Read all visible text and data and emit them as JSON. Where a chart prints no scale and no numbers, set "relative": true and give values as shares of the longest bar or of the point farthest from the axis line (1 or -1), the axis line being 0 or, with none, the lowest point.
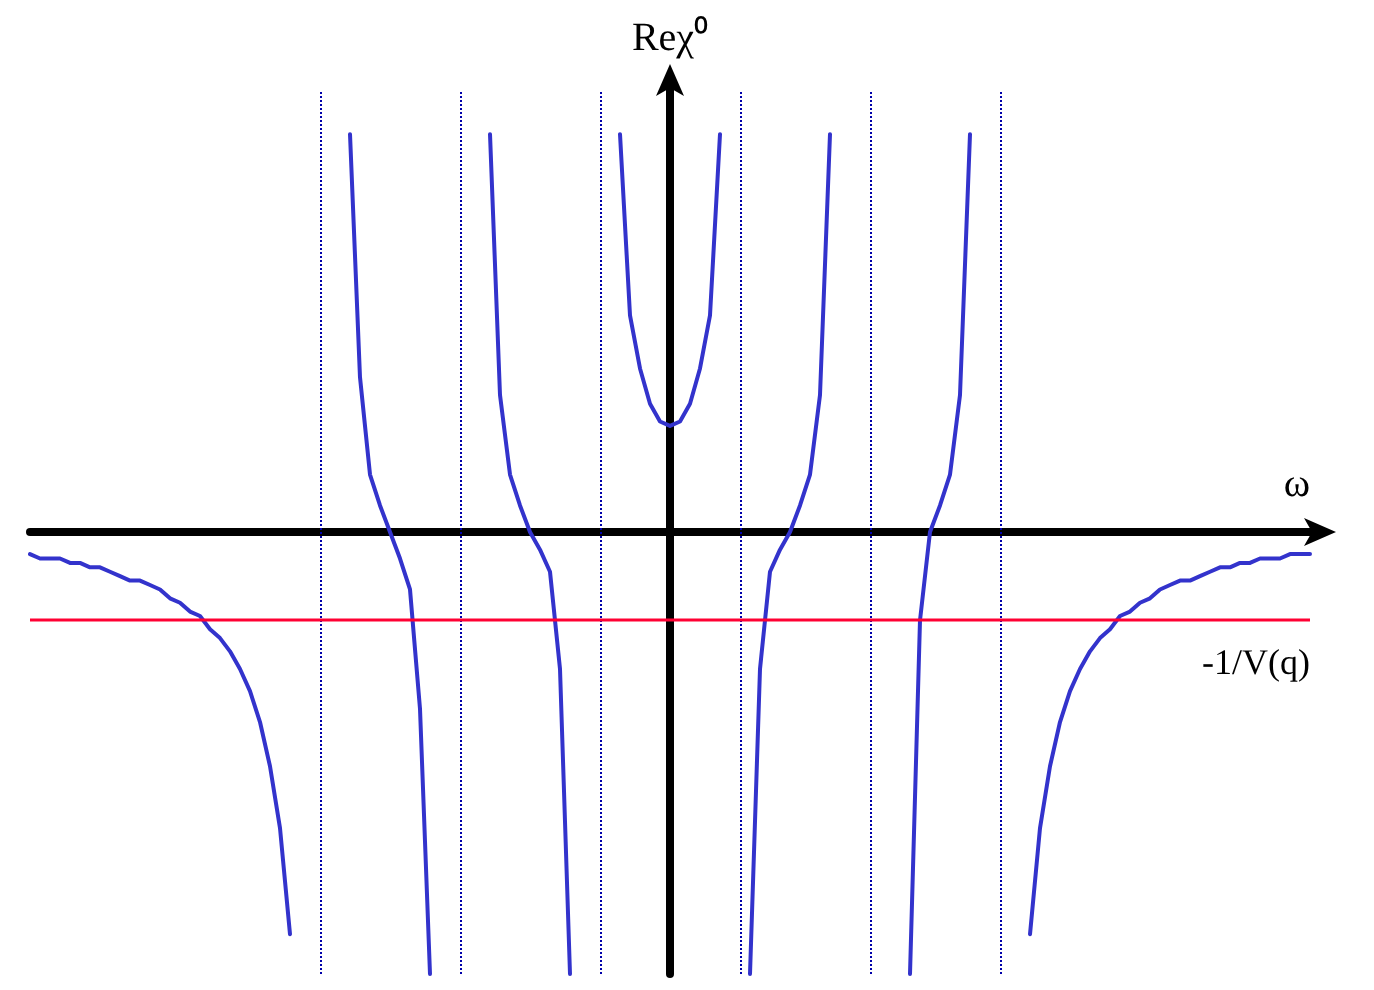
{
  "chart_data": {
    "type": "line",
    "xlabel": "ω",
    "ylabel": "Reχ⁰",
    "relative": true,
    "grid": false,
    "marker": "none",
    "categories": [
      null,
      null,
      null,
      null,
      null,
      null,
      null,
      null,
      null,
      null,
      null,
      null,
      null,
      null,
      null,
      null,
      null,
      null,
      null,
      null,
      null,
      null,
      null,
      null,
      null,
      null,
      null,
      null,
      null,
      null,
      null,
      null,
      null,
      null,
      null,
      null,
      null,
      null,
      null,
      null,
      null,
      null,
      null,
      null,
      null,
      null,
      null,
      null,
      null,
      null,
      null,
      null,
      null,
      null,
      null,
      null,
      null,
      null,
      null,
      null,
      null,
      null,
      null,
      null,
      null,
      null,
      null,
      null,
      null,
      null,
      null,
      null,
      null,
      null,
      null,
      null,
      null,
      null,
      null,
      null,
      null,
      null,
      null,
      null,
      null,
      null,
      null,
      null,
      null,
      null,
      null,
      null,
      null,
      null,
      null,
      null,
      null,
      null,
      null,
      null,
      null,
      null,
      null,
      null,
      null,
      null,
      null,
      null,
      null,
      null,
      null,
      null,
      null,
      null,
      null,
      null,
      null,
      null,
      null,
      null,
      null,
      null,
      null,
      null,
      null,
      null,
      null,
      null,
      null
    ],
    "series": [
      {
        "color": "#3333cc",
        "values": [
          -0.05,
          -0.06,
          -0.06,
          -0.06,
          -0.07,
          -0.07,
          -0.08,
          -0.08,
          -0.09,
          -0.1,
          -0.11,
          -0.11,
          -0.12,
          -0.13,
          -0.15,
          -0.16,
          -0.18,
          -0.19,
          -0.22,
          -0.24,
          -0.27,
          -0.31,
          -0.36,
          -0.43,
          -0.53,
          -0.67,
          -0.91,
          null,
          null,
          null,
          null,
          null,
          null,
          null,
          null,
          null,
          null,
          null,
          null,
          null,
          null,
          null,
          null,
          null,
          null,
          null,
          null,
          null,
          null,
          null,
          null,
          null,
          null,
          null,
          null,
          null,
          null,
          null,
          null,
          null,
          null,
          null,
          null,
          null,
          null,
          null,
          null,
          null,
          null,
          null,
          null,
          null,
          null,
          null,
          null,
          null,
          null,
          null,
          null,
          null,
          null,
          null,
          null,
          null,
          null,
          null,
          null,
          null,
          null,
          null,
          null,
          null,
          null,
          null,
          null,
          null,
          null,
          null,
          null,
          null,
          null,
          null,
          null,
          null,
          null,
          null,
          null,
          null,
          null,
          null,
          null,
          null,
          null,
          null,
          null,
          null,
          null,
          null,
          null,
          null,
          null,
          null,
          null,
          null,
          null,
          null,
          null,
          null,
          null
        ]
      },
      {
        "color": "#3333cc",
        "values": [
          null,
          null,
          null,
          null,
          null,
          null,
          null,
          null,
          null,
          null,
          null,
          null,
          null,
          null,
          null,
          null,
          null,
          null,
          null,
          null,
          null,
          null,
          null,
          null,
          null,
          null,
          null,
          null,
          null,
          null,
          null,
          null,
          0.9,
          0.35,
          0.13,
          0.06,
          0,
          -0.06,
          -0.13,
          -0.4,
          -1,
          null,
          null,
          null,
          null,
          null,
          null,
          null,
          null,
          null,
          null,
          null,
          null,
          null,
          null,
          null,
          null,
          null,
          null,
          null,
          null,
          null,
          null,
          null,
          null,
          null,
          null,
          null,
          null,
          null,
          null,
          null,
          null,
          null,
          null,
          null,
          null,
          null,
          null,
          null,
          null,
          null,
          null,
          null,
          null,
          null,
          null,
          null,
          null,
          null,
          null,
          null,
          null,
          null,
          null,
          null,
          null,
          null,
          null,
          null,
          null,
          null,
          null,
          null,
          null,
          null,
          null,
          null,
          null,
          null,
          null,
          null,
          null,
          null,
          null,
          null,
          null,
          null,
          null,
          null,
          null,
          null,
          null,
          null,
          null,
          null,
          null,
          null,
          null
        ]
      },
      {
        "color": "#3333cc",
        "values": [
          null,
          null,
          null,
          null,
          null,
          null,
          null,
          null,
          null,
          null,
          null,
          null,
          null,
          null,
          null,
          null,
          null,
          null,
          null,
          null,
          null,
          null,
          null,
          null,
          null,
          null,
          null,
          null,
          null,
          null,
          null,
          null,
          null,
          null,
          null,
          null,
          null,
          null,
          null,
          null,
          null,
          null,
          null,
          null,
          null,
          null,
          0.9,
          0.31,
          0.13,
          0.06,
          0,
          -0.04,
          -0.09,
          -0.31,
          -1,
          null,
          null,
          null,
          null,
          null,
          null,
          null,
          null,
          null,
          null,
          null,
          null,
          null,
          null,
          null,
          null,
          null,
          null,
          null,
          null,
          null,
          null,
          null,
          null,
          null,
          null,
          null,
          null,
          null,
          null,
          null,
          null,
          null,
          null,
          null,
          null,
          null,
          null,
          null,
          null,
          null,
          null,
          null,
          null,
          null,
          null,
          null,
          null,
          null,
          null,
          null,
          null,
          null,
          null,
          null,
          null,
          null,
          null,
          null,
          null,
          null,
          null,
          null,
          null,
          null,
          null,
          null,
          null,
          null,
          null,
          null,
          null,
          null,
          null
        ]
      },
      {
        "color": "#3333cc",
        "values": [
          null,
          null,
          null,
          null,
          null,
          null,
          null,
          null,
          null,
          null,
          null,
          null,
          null,
          null,
          null,
          null,
          null,
          null,
          null,
          null,
          null,
          null,
          null,
          null,
          null,
          null,
          null,
          null,
          null,
          null,
          null,
          null,
          null,
          null,
          null,
          null,
          null,
          null,
          null,
          null,
          null,
          null,
          null,
          null,
          null,
          null,
          null,
          null,
          null,
          null,
          null,
          null,
          null,
          null,
          null,
          null,
          null,
          null,
          null,
          0.9,
          0.49,
          0.37,
          0.29,
          0.25,
          0.24,
          0.25,
          0.29,
          0.37,
          0.49,
          0.9,
          null,
          null,
          null,
          null,
          null,
          null,
          null,
          null,
          null,
          null,
          null,
          null,
          null,
          null,
          null,
          null,
          null,
          null,
          null,
          null,
          null,
          null,
          null,
          null,
          null,
          null,
          null,
          null,
          null,
          null,
          null,
          null,
          null,
          null,
          null,
          null,
          null,
          null,
          null,
          null,
          null,
          null,
          null,
          null,
          null,
          null,
          null,
          null,
          null,
          null,
          null,
          null,
          null,
          null,
          null,
          null,
          null,
          null,
          null
        ]
      },
      {
        "color": "#3333cc",
        "values": [
          null,
          null,
          null,
          null,
          null,
          null,
          null,
          null,
          null,
          null,
          null,
          null,
          null,
          null,
          null,
          null,
          null,
          null,
          null,
          null,
          null,
          null,
          null,
          null,
          null,
          null,
          null,
          null,
          null,
          null,
          null,
          null,
          null,
          null,
          null,
          null,
          null,
          null,
          null,
          null,
          null,
          null,
          null,
          null,
          null,
          null,
          null,
          null,
          null,
          null,
          null,
          null,
          null,
          null,
          null,
          null,
          null,
          null,
          null,
          null,
          null,
          null,
          null,
          null,
          null,
          null,
          null,
          null,
          null,
          null,
          null,
          null,
          -1,
          -0.31,
          -0.09,
          -0.04,
          0,
          0.06,
          0.13,
          0.31,
          0.9,
          null,
          null,
          null,
          null,
          null,
          null,
          null,
          null,
          null,
          null,
          null,
          null,
          null,
          null,
          null,
          null,
          null,
          null,
          null,
          null,
          null,
          null,
          null,
          null,
          null,
          null,
          null,
          null,
          null,
          null,
          null,
          null,
          null,
          null,
          null,
          null,
          null,
          null,
          null,
          null,
          null,
          null,
          null,
          null,
          null,
          null,
          null,
          null
        ]
      },
      {
        "color": "#3333cc",
        "values": [
          null,
          null,
          null,
          null,
          null,
          null,
          null,
          null,
          null,
          null,
          null,
          null,
          null,
          null,
          null,
          null,
          null,
          null,
          null,
          null,
          null,
          null,
          null,
          null,
          null,
          null,
          null,
          null,
          null,
          null,
          null,
          null,
          null,
          null,
          null,
          null,
          null,
          null,
          null,
          null,
          null,
          null,
          null,
          null,
          null,
          null,
          null,
          null,
          null,
          null,
          null,
          null,
          null,
          null,
          null,
          null,
          null,
          null,
          null,
          null,
          null,
          null,
          null,
          null,
          null,
          null,
          null,
          null,
          null,
          null,
          null,
          null,
          null,
          null,
          null,
          null,
          null,
          null,
          null,
          null,
          null,
          null,
          null,
          null,
          null,
          null,
          null,
          null,
          -1,
          -0.2,
          0,
          0.06,
          0.13,
          0.31,
          0.9,
          null,
          null,
          null,
          null,
          null,
          null,
          null,
          null,
          null,
          null,
          null,
          null,
          null,
          null,
          null,
          null,
          null,
          null,
          null,
          null,
          null,
          null,
          null,
          null,
          null,
          null,
          null,
          null,
          null,
          null,
          null,
          null,
          null,
          null
        ]
      },
      {
        "color": "#3333cc",
        "values": [
          null,
          null,
          null,
          null,
          null,
          null,
          null,
          null,
          null,
          null,
          null,
          null,
          null,
          null,
          null,
          null,
          null,
          null,
          null,
          null,
          null,
          null,
          null,
          null,
          null,
          null,
          null,
          null,
          null,
          null,
          null,
          null,
          null,
          null,
          null,
          null,
          null,
          null,
          null,
          null,
          null,
          null,
          null,
          null,
          null,
          null,
          null,
          null,
          null,
          null,
          null,
          null,
          null,
          null,
          null,
          null,
          null,
          null,
          null,
          null,
          null,
          null,
          null,
          null,
          null,
          null,
          null,
          null,
          null,
          null,
          null,
          null,
          null,
          null,
          null,
          null,
          null,
          null,
          null,
          null,
          null,
          null,
          null,
          null,
          null,
          null,
          null,
          null,
          null,
          null,
          null,
          null,
          null,
          null,
          null,
          null,
          null,
          null,
          null,
          null,
          -0.91,
          -0.67,
          -0.53,
          -0.43,
          -0.36,
          -0.31,
          -0.27,
          -0.24,
          -0.22,
          -0.19,
          -0.18,
          -0.16,
          -0.15,
          -0.13,
          -0.12,
          -0.11,
          -0.11,
          -0.1,
          -0.09,
          -0.08,
          -0.08,
          -0.07,
          -0.07,
          -0.06,
          -0.06,
          -0.06,
          -0.05,
          -0.05,
          -0.05
        ]
      }
    ],
    "ref_lines": [
      {
        "axis": "y",
        "value": -0.2,
        "label": "-1/V(q)",
        "color": "#ff0033",
        "line_style": "solid"
      }
    ]
  }
}
